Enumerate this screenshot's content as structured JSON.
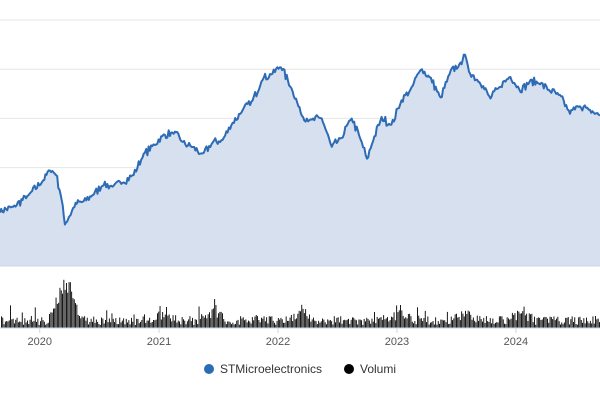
{
  "chart_data": {
    "type": "area",
    "title": "",
    "xlabel": "",
    "ylabel": "",
    "x_ticks": [
      "2020",
      "2021",
      "2022",
      "2023",
      "2024"
    ],
    "x_range": [
      "2019-09-01",
      "2024-09-15"
    ],
    "grid": true,
    "legend_position": "bottom-center",
    "series": [
      {
        "name": "STMicroelectronics",
        "type": "area",
        "color": "#2e6bb5",
        "fill": "#d6e0ef",
        "points": [
          [
            "2019-09-01",
            17.0
          ],
          [
            "2019-10-15",
            18.0
          ],
          [
            "2019-12-01",
            20.5
          ],
          [
            "2020-01-15",
            23.5
          ],
          [
            "2020-02-01",
            25.5
          ],
          [
            "2020-02-20",
            24.5
          ],
          [
            "2020-03-05",
            20.5
          ],
          [
            "2020-03-18",
            14.5
          ],
          [
            "2020-04-01",
            16.0
          ],
          [
            "2020-04-20",
            18.5
          ],
          [
            "2020-05-15",
            19.0
          ],
          [
            "2020-06-15",
            20.5
          ],
          [
            "2020-07-15",
            22.5
          ],
          [
            "2020-08-15",
            22.0
          ],
          [
            "2020-09-15",
            23.0
          ],
          [
            "2020-10-15",
            24.5
          ],
          [
            "2020-11-15",
            28.5
          ],
          [
            "2020-12-15",
            30.5
          ],
          [
            "2021-01-15",
            32.5
          ],
          [
            "2021-02-15",
            33.0
          ],
          [
            "2021-03-15",
            31.0
          ],
          [
            "2021-04-15",
            30.0
          ],
          [
            "2021-05-15",
            28.5
          ],
          [
            "2021-06-15",
            31.0
          ],
          [
            "2021-07-15",
            31.5
          ],
          [
            "2021-08-15",
            35.0
          ],
          [
            "2021-09-15",
            37.5
          ],
          [
            "2021-10-15",
            39.5
          ],
          [
            "2021-11-15",
            44.0
          ],
          [
            "2021-12-15",
            45.0
          ],
          [
            "2022-01-10",
            46.5
          ],
          [
            "2022-02-15",
            41.5
          ],
          [
            "2022-03-15",
            36.5
          ],
          [
            "2022-04-15",
            35.5
          ],
          [
            "2022-05-15",
            36.0
          ],
          [
            "2022-06-15",
            30.0
          ],
          [
            "2022-07-15",
            32.0
          ],
          [
            "2022-08-15",
            36.0
          ],
          [
            "2022-09-15",
            31.0
          ],
          [
            "2022-10-01",
            27.5
          ],
          [
            "2022-10-20",
            31.5
          ],
          [
            "2022-11-15",
            36.0
          ],
          [
            "2022-12-15",
            34.5
          ],
          [
            "2023-01-15",
            39.5
          ],
          [
            "2023-02-15",
            42.0
          ],
          [
            "2023-03-15",
            46.0
          ],
          [
            "2023-04-15",
            44.0
          ],
          [
            "2023-05-15",
            40.0
          ],
          [
            "2023-06-15",
            45.5
          ],
          [
            "2023-07-15",
            47.0
          ],
          [
            "2023-07-25",
            49.0
          ],
          [
            "2023-08-10",
            45.5
          ],
          [
            "2023-09-15",
            43.0
          ],
          [
            "2023-10-15",
            40.0
          ],
          [
            "2023-11-15",
            42.5
          ],
          [
            "2023-12-15",
            44.5
          ],
          [
            "2024-01-15",
            41.5
          ],
          [
            "2024-02-15",
            43.5
          ],
          [
            "2024-03-15",
            43.0
          ],
          [
            "2024-04-15",
            41.5
          ],
          [
            "2024-05-15",
            40.5
          ],
          [
            "2024-06-15",
            37.0
          ],
          [
            "2024-07-15",
            38.5
          ],
          [
            "2024-08-15",
            37.5
          ],
          [
            "2024-09-15",
            36.5
          ]
        ]
      },
      {
        "name": "Volumi",
        "type": "column",
        "color": "#000000"
      }
    ],
    "volume_peaks": [
      "2020-03-05",
      "2020-03-18",
      "2020-04-01",
      "2021-01-15",
      "2021-06-15",
      "2022-03-15",
      "2023-01-15",
      "2023-07-25",
      "2024-01-15"
    ]
  },
  "legend": {
    "items": [
      {
        "label": "STMicroelectronics",
        "color": "#2e6bb5"
      },
      {
        "label": "Volumi",
        "color": "#000000"
      }
    ]
  }
}
